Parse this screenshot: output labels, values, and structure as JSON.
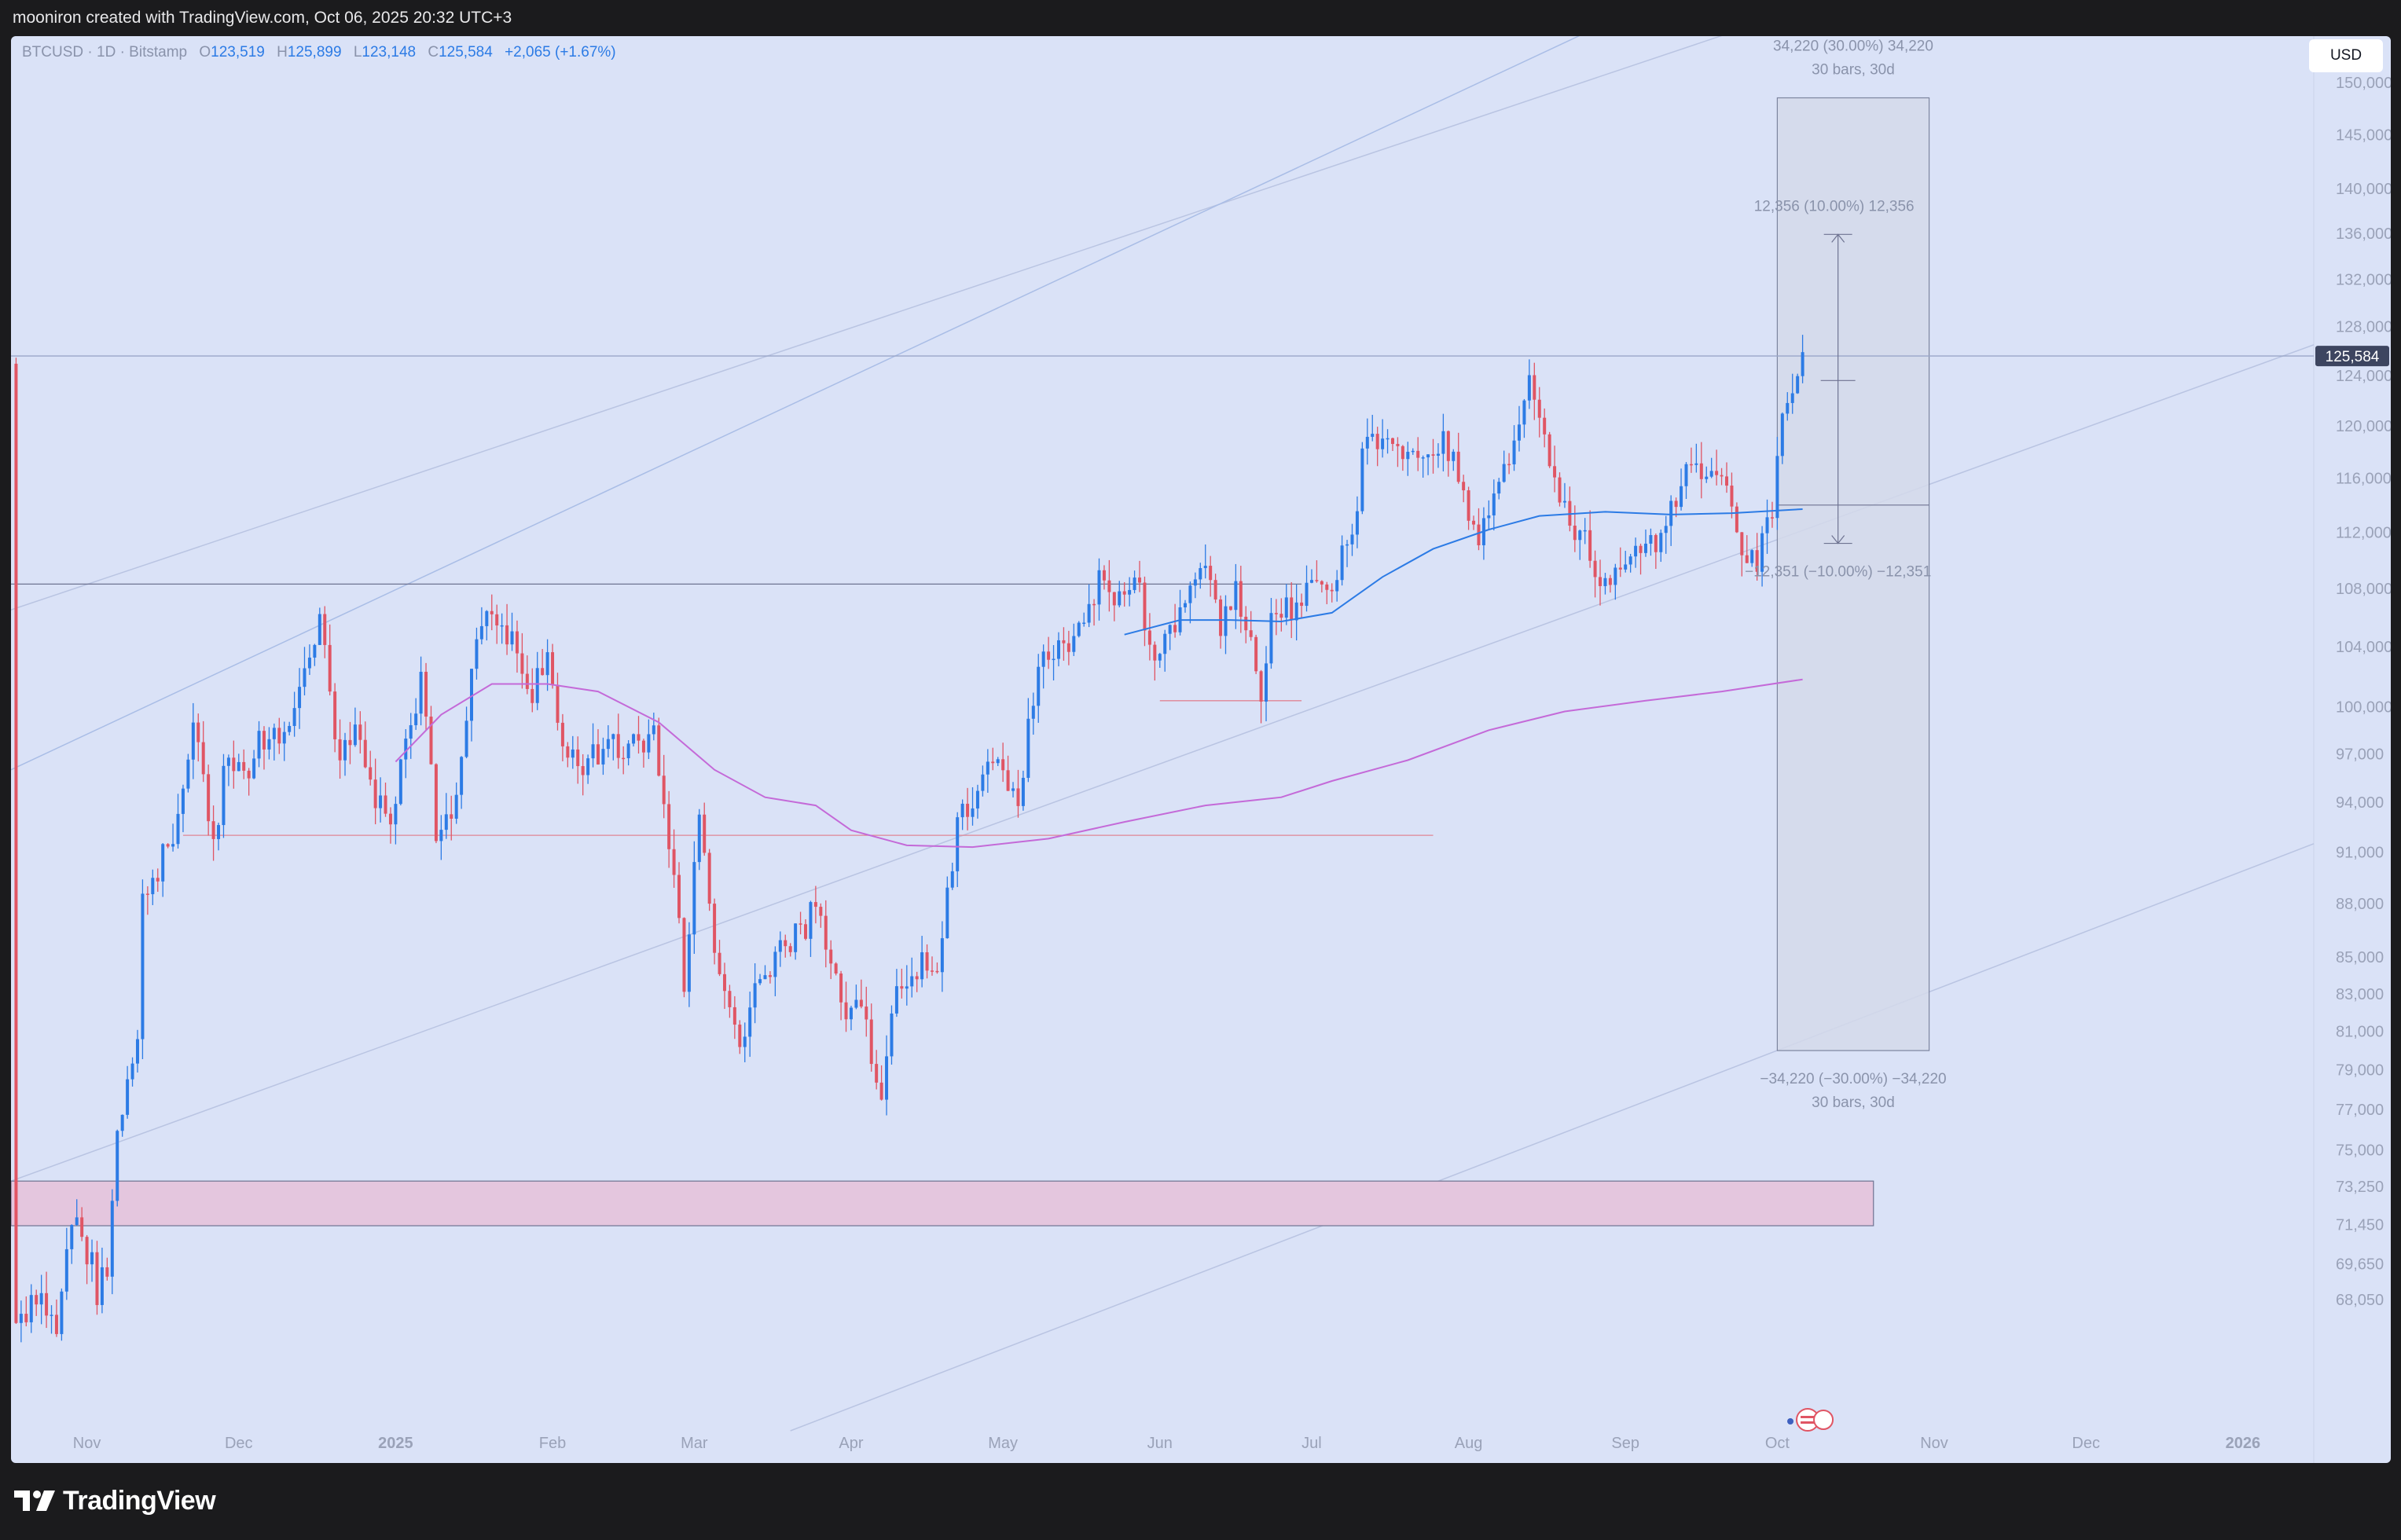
{
  "header": {
    "caption": "mooniron created with TradingView.com, Oct 06, 2025 20:32 UTC+3"
  },
  "legend": {
    "symbol": "BTCUSD · 1D · Bitstamp",
    "o_label": "O",
    "o_value": "123,519",
    "h_label": "H",
    "h_value": "125,899",
    "l_label": "L",
    "l_value": "123,148",
    "c_label": "C",
    "c_value": "125,584",
    "change": "+2,065 (+1.67%)"
  },
  "currency_button": "USD",
  "footer": {
    "brand": "TradingView"
  },
  "colors": {
    "up": "#2c7be5",
    "down": "#e05564",
    "background": "#dae2f7",
    "ma_fast": "#2c7be5",
    "ma_slow": "#c46ad8"
  },
  "chart_data": {
    "type": "candlestick",
    "symbol": "BTCUSD",
    "interval": "1D",
    "y_scale": "log",
    "ylim": [
      62500,
      153000
    ],
    "y_ticks": [
      {
        "v": 150000,
        "label": "150,000"
      },
      {
        "v": 145000,
        "label": "145,000"
      },
      {
        "v": 140000,
        "label": "140,000"
      },
      {
        "v": 136000,
        "label": "136,000"
      },
      {
        "v": 132000,
        "label": "132,000"
      },
      {
        "v": 128000,
        "label": "128,000"
      },
      {
        "v": 124000,
        "label": "124,000"
      },
      {
        "v": 120000,
        "label": "120,000"
      },
      {
        "v": 116000,
        "label": "116,000"
      },
      {
        "v": 112000,
        "label": "112,000"
      },
      {
        "v": 108000,
        "label": "108,000"
      },
      {
        "v": 104000,
        "label": "104,000"
      },
      {
        "v": 100000,
        "label": "100,000"
      },
      {
        "v": 97000,
        "label": "97,000"
      },
      {
        "v": 94000,
        "label": "94,000"
      },
      {
        "v": 91000,
        "label": "91,000"
      },
      {
        "v": 88000,
        "label": "88,000"
      },
      {
        "v": 85000,
        "label": "85,000"
      },
      {
        "v": 83000,
        "label": "83,000"
      },
      {
        "v": 81000,
        "label": "81,000"
      },
      {
        "v": 79000,
        "label": "79,000"
      },
      {
        "v": 77000,
        "label": "77,000"
      },
      {
        "v": 75000,
        "label": "75,000"
      },
      {
        "v": 73250,
        "label": "73,250"
      },
      {
        "v": 71450,
        "label": "71,450"
      },
      {
        "v": 69650,
        "label": "69,650"
      },
      {
        "v": 68050,
        "label": "68,050"
      }
    ],
    "x_start": "2024-10-17",
    "x_end": "2026-01-15",
    "x_ticks": [
      {
        "date": "2024-11-01",
        "label": "Nov",
        "bold": false
      },
      {
        "date": "2024-12-01",
        "label": "Dec",
        "bold": false
      },
      {
        "date": "2025-01-01",
        "label": "2025",
        "bold": true
      },
      {
        "date": "2025-02-01",
        "label": "Feb",
        "bold": false
      },
      {
        "date": "2025-03-01",
        "label": "Mar",
        "bold": false
      },
      {
        "date": "2025-04-01",
        "label": "Apr",
        "bold": false
      },
      {
        "date": "2025-05-01",
        "label": "May",
        "bold": false
      },
      {
        "date": "2025-06-01",
        "label": "Jun",
        "bold": false
      },
      {
        "date": "2025-07-01",
        "label": "Jul",
        "bold": false
      },
      {
        "date": "2025-08-01",
        "label": "Aug",
        "bold": false
      },
      {
        "date": "2025-09-01",
        "label": "Sep",
        "bold": false
      },
      {
        "date": "2025-10-01",
        "label": "Oct",
        "bold": false
      },
      {
        "date": "2025-11-01",
        "label": "Nov",
        "bold": false
      },
      {
        "date": "2025-12-01",
        "label": "Dec",
        "bold": false
      },
      {
        "date": "2026-01-01",
        "label": "2026",
        "bold": true
      }
    ],
    "last_price": 125584,
    "last_price_label": "125,584",
    "close_anchors": [
      [
        "2024-10-18",
        67000
      ],
      [
        "2024-10-22",
        68500
      ],
      [
        "2024-10-26",
        67200
      ],
      [
        "2024-10-30",
        72300
      ],
      [
        "2024-11-03",
        68500
      ],
      [
        "2024-11-05",
        69500
      ],
      [
        "2024-11-07",
        75800
      ],
      [
        "2024-11-11",
        80500
      ],
      [
        "2024-11-12",
        88500
      ],
      [
        "2024-11-16",
        90500
      ],
      [
        "2024-11-19",
        92500
      ],
      [
        "2024-11-22",
        98700
      ],
      [
        "2024-11-26",
        91900
      ],
      [
        "2024-11-29",
        97000
      ],
      [
        "2024-12-03",
        95800
      ],
      [
        "2024-12-05",
        98500
      ],
      [
        "2024-12-09",
        97300
      ],
      [
        "2024-12-12",
        101000
      ],
      [
        "2024-12-17",
        106000
      ],
      [
        "2024-12-20",
        97500
      ],
      [
        "2024-12-24",
        98000
      ],
      [
        "2024-12-30",
        92500
      ],
      [
        "2025-01-03",
        97000
      ],
      [
        "2025-01-06",
        102000
      ],
      [
        "2025-01-09",
        92500
      ],
      [
        "2025-01-13",
        94500
      ],
      [
        "2025-01-17",
        104000
      ],
      [
        "2025-01-20",
        107000
      ],
      [
        "2025-01-24",
        104500
      ],
      [
        "2025-01-27",
        100500
      ],
      [
        "2025-01-31",
        102500
      ],
      [
        "2025-02-03",
        97000
      ],
      [
        "2025-02-08",
        96500
      ],
      [
        "2025-02-15",
        97500
      ],
      [
        "2025-02-21",
        98000
      ],
      [
        "2025-02-24",
        91500
      ],
      [
        "2025-02-27",
        84000
      ],
      [
        "2025-03-02",
        94000
      ],
      [
        "2025-03-04",
        87500
      ],
      [
        "2025-03-10",
        79500
      ],
      [
        "2025-03-14",
        84000
      ],
      [
        "2025-03-20",
        86000
      ],
      [
        "2025-03-25",
        87500
      ],
      [
        "2025-03-31",
        82500
      ],
      [
        "2025-04-03",
        83000
      ],
      [
        "2025-04-07",
        77000
      ],
      [
        "2025-04-09",
        82000
      ],
      [
        "2025-04-12",
        84000
      ],
      [
        "2025-04-18",
        84700
      ],
      [
        "2025-04-22",
        93000
      ],
      [
        "2025-04-25",
        94500
      ],
      [
        "2025-05-01",
        96500
      ],
      [
        "2025-05-04",
        94200
      ],
      [
        "2025-05-08",
        103500
      ],
      [
        "2025-05-15",
        103800
      ],
      [
        "2025-05-21",
        109500
      ],
      [
        "2025-05-23",
        108000
      ],
      [
        "2025-05-27",
        108500
      ],
      [
        "2025-05-31",
        104000
      ],
      [
        "2025-06-04",
        105000
      ],
      [
        "2025-06-09",
        110000
      ],
      [
        "2025-06-13",
        105500
      ],
      [
        "2025-06-16",
        107500
      ],
      [
        "2025-06-21",
        101000
      ],
      [
        "2025-06-23",
        105500
      ],
      [
        "2025-06-30",
        107500
      ],
      [
        "2025-07-04",
        108000
      ],
      [
        "2025-07-09",
        111500
      ],
      [
        "2025-07-11",
        117500
      ],
      [
        "2025-07-14",
        119500
      ],
      [
        "2025-07-19",
        118000
      ],
      [
        "2025-07-23",
        118500
      ],
      [
        "2025-07-27",
        119000
      ],
      [
        "2025-08-01",
        114000
      ],
      [
        "2025-08-03",
        112200
      ],
      [
        "2025-08-07",
        116000
      ],
      [
        "2025-08-10",
        119500
      ],
      [
        "2025-08-13",
        123000
      ],
      [
        "2025-08-17",
        117500
      ],
      [
        "2025-08-20",
        114000
      ],
      [
        "2025-08-25",
        110200
      ],
      [
        "2025-08-29",
        108000
      ],
      [
        "2025-09-02",
        111000
      ],
      [
        "2025-09-08",
        111500
      ],
      [
        "2025-09-12",
        115800
      ],
      [
        "2025-09-17",
        116500
      ],
      [
        "2025-09-21",
        115500
      ],
      [
        "2025-09-25",
        109500
      ],
      [
        "2025-09-27",
        109800
      ],
      [
        "2025-09-30",
        114000
      ],
      [
        "2025-10-02",
        120000
      ],
      [
        "2025-10-04",
        122500
      ],
      [
        "2025-10-05",
        123500
      ],
      [
        "2025-10-06",
        125584
      ]
    ],
    "ma_fast": [
      [
        "2025-05-25",
        104800
      ],
      [
        "2025-06-05",
        105800
      ],
      [
        "2025-06-15",
        105800
      ],
      [
        "2025-06-25",
        105700
      ],
      [
        "2025-07-05",
        106300
      ],
      [
        "2025-07-15",
        108800
      ],
      [
        "2025-07-25",
        110800
      ],
      [
        "2025-08-05",
        112200
      ],
      [
        "2025-08-15",
        113200
      ],
      [
        "2025-08-28",
        113500
      ],
      [
        "2025-09-10",
        113300
      ],
      [
        "2025-09-22",
        113400
      ],
      [
        "2025-10-06",
        113700
      ]
    ],
    "ma_slow": [
      [
        "2025-01-01",
        96500
      ],
      [
        "2025-01-10",
        99500
      ],
      [
        "2025-01-20",
        101500
      ],
      [
        "2025-01-31",
        101500
      ],
      [
        "2025-02-10",
        101000
      ],
      [
        "2025-02-22",
        99000
      ],
      [
        "2025-03-05",
        96000
      ],
      [
        "2025-03-15",
        94300
      ],
      [
        "2025-03-25",
        93800
      ],
      [
        "2025-04-01",
        92300
      ],
      [
        "2025-04-12",
        91400
      ],
      [
        "2025-04-25",
        91300
      ],
      [
        "2025-05-10",
        91800
      ],
      [
        "2025-05-25",
        92800
      ],
      [
        "2025-06-10",
        93800
      ],
      [
        "2025-06-25",
        94300
      ],
      [
        "2025-07-05",
        95300
      ],
      [
        "2025-07-20",
        96600
      ],
      [
        "2025-08-05",
        98500
      ],
      [
        "2025-08-20",
        99700
      ],
      [
        "2025-09-05",
        100400
      ],
      [
        "2025-09-20",
        101000
      ],
      [
        "2025-10-06",
        101800
      ]
    ],
    "drawings": {
      "horizontal_lines": [
        {
          "start": "2024-10-17",
          "end": "2025-06-29",
          "price": 108300,
          "color": "#6e7391"
        },
        {
          "start": "2024-11-20",
          "end": "2025-07-25",
          "price": 92000,
          "color": "#e08595"
        },
        {
          "start": "2025-06-01",
          "end": "2025-06-29",
          "price": 100400,
          "color": "#e08595"
        },
        {
          "start": "2024-10-17",
          "end": "2026-01-15",
          "price": 125584,
          "color": "#9aa6c8"
        }
      ],
      "zone": {
        "start": "2024-10-17",
        "end": "2025-10-20",
        "low": 71400,
        "high": 73500
      },
      "channel_lines": [
        {
          "p1": [
            "2024-10-17",
            106500
          ],
          "p2": [
            "2025-12-15",
            170000
          ]
        },
        {
          "p1": [
            "2024-10-17",
            96000
          ],
          "p2": [
            "2025-09-06",
            158000
          ]
        },
        {
          "p1": [
            "2024-10-17",
            73500
          ],
          "p2": [
            "2026-01-15",
            126500
          ]
        },
        {
          "p1": [
            "2025-03-20",
            62500
          ],
          "p2": [
            "2026-01-15",
            91500
          ]
        }
      ],
      "range_box": {
        "start": "2025-10-01",
        "end": "2025-10-31",
        "high": 148500,
        "low": 80000,
        "mid": 114000,
        "top_label": "34,220 (30.00%) 34,220",
        "top_sub": "30 bars, 30d",
        "bottom_label": "−34,220 (−30.00%) −34,220",
        "bottom_sub": "30 bars, 30d"
      },
      "measure": {
        "date": "2025-10-13",
        "base": 123600,
        "high": 135900,
        "low": 111200,
        "up_label": "12,356 (10.00%) 12,356",
        "down_label": "−12,351 (−10.00%) −12,351"
      }
    }
  }
}
